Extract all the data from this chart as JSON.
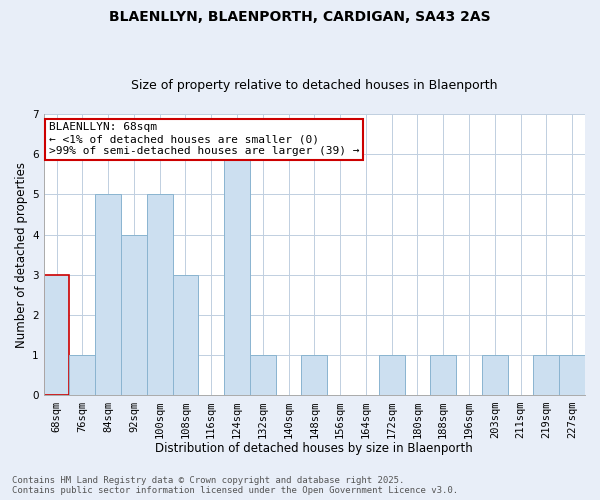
{
  "title": "BLAENLLYN, BLAENPORTH, CARDIGAN, SA43 2AS",
  "subtitle": "Size of property relative to detached houses in Blaenporth",
  "xlabel": "Distribution of detached houses by size in Blaenporth",
  "ylabel": "Number of detached properties",
  "footer_line1": "Contains HM Land Registry data © Crown copyright and database right 2025.",
  "footer_line2": "Contains public sector information licensed under the Open Government Licence v3.0.",
  "bin_labels": [
    "68sqm",
    "76sqm",
    "84sqm",
    "92sqm",
    "100sqm",
    "108sqm",
    "116sqm",
    "124sqm",
    "132sqm",
    "140sqm",
    "148sqm",
    "156sqm",
    "164sqm",
    "172sqm",
    "180sqm",
    "188sqm",
    "196sqm",
    "203sqm",
    "211sqm",
    "219sqm",
    "227sqm"
  ],
  "bar_values": [
    3,
    1,
    5,
    4,
    5,
    3,
    0,
    6,
    1,
    0,
    1,
    0,
    0,
    1,
    0,
    1,
    0,
    1,
    0,
    1,
    1
  ],
  "bar_color": "#ccdff0",
  "bar_edge_color": "#8ab4d0",
  "highlight_bar_index": 0,
  "highlight_bar_edge_color": "#cc0000",
  "annotation_text": "BLAENLLYN: 68sqm\n← <1% of detached houses are smaller (0)\n>99% of semi-detached houses are larger (39) →",
  "annotation_box_edge_color": "#cc0000",
  "annotation_box_face_color": "#ffffff",
  "ylim": [
    0,
    7
  ],
  "yticks": [
    0,
    1,
    2,
    3,
    4,
    5,
    6,
    7
  ],
  "background_color": "#e8eef8",
  "plot_background_color": "#ffffff",
  "grid_color": "#c0cfe0",
  "title_fontsize": 10,
  "subtitle_fontsize": 9,
  "axis_label_fontsize": 8.5,
  "tick_fontsize": 7.5,
  "annotation_fontsize": 8,
  "footer_fontsize": 6.5
}
